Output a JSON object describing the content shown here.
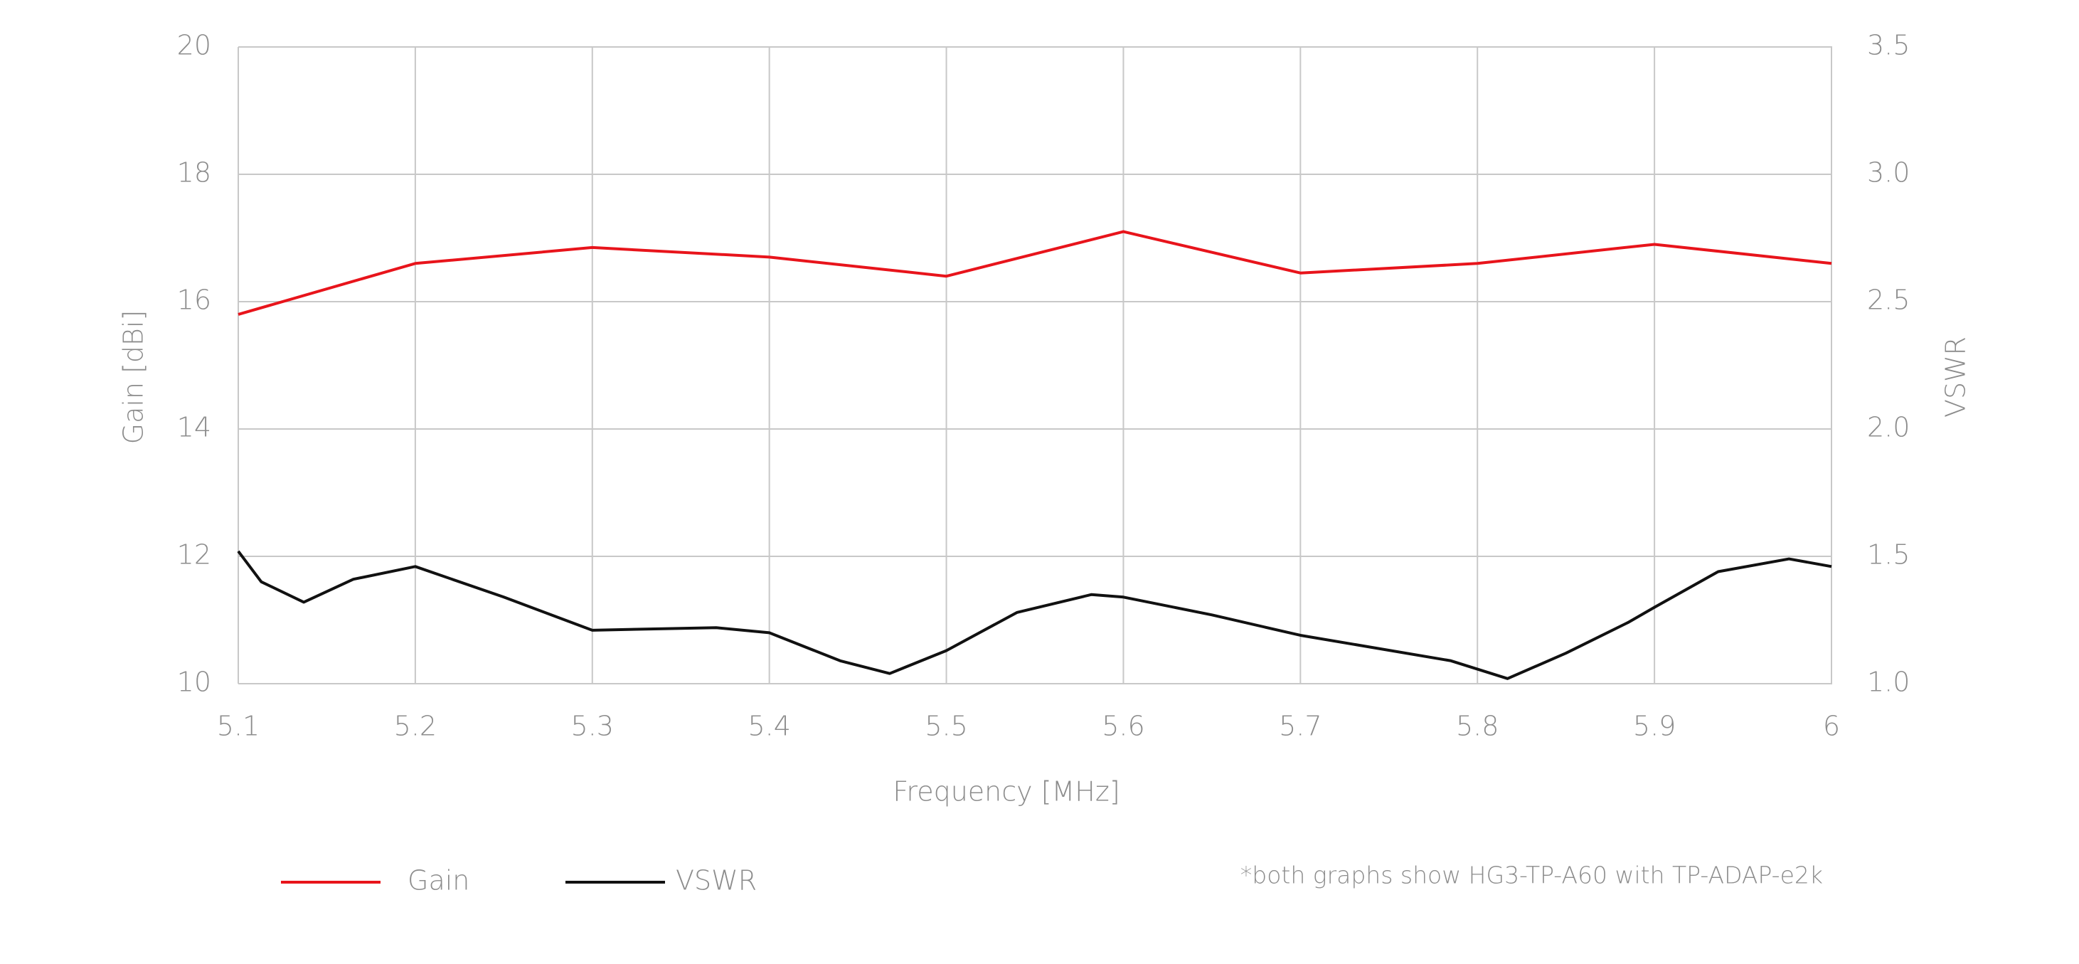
{
  "chart_data": {
    "type": "line",
    "x_label": "Frequency [MHz]",
    "y_label": "Gain [dBi]",
    "y2_label": "VSWR",
    "note": "*both graphs show HG3-TP-A60 with TP-ADAP-e2k",
    "xlim": [
      5.1,
      6
    ],
    "xticks": [
      5.1,
      5.2,
      5.3,
      5.4,
      5.5,
      5.6,
      5.7,
      5.8,
      5.9,
      6
    ],
    "ylim": [
      10,
      20
    ],
    "yticks": [
      10,
      12,
      14,
      16,
      18,
      20
    ],
    "y2lim": [
      1.0,
      3.5
    ],
    "y2ticks": [
      {
        "value": 1.0,
        "label": "1.0"
      },
      1.5,
      {
        "value": 2.0,
        "label": "2.0"
      },
      2.5,
      {
        "value": 3.0,
        "label": "3.0"
      },
      3.5
    ],
    "grid": true,
    "legend": "bottom-left",
    "series": [
      {
        "name": "Gain",
        "color": "#e8141b",
        "axis": "y",
        "x": [
          5.1,
          5.2,
          5.3,
          5.4,
          5.5,
          5.6,
          5.7,
          5.8,
          5.9,
          6
        ],
        "values": [
          15.8,
          16.6,
          16.85,
          16.7,
          16.4,
          17.1,
          16.45,
          16.6,
          16.9,
          16.6
        ]
      },
      {
        "name": "VSWR",
        "color": "#111111",
        "axis": "y2",
        "x": [
          5.1,
          5.113,
          5.137,
          5.165,
          5.2,
          5.25,
          5.3,
          5.37,
          5.4,
          5.44,
          5.468,
          5.5,
          5.54,
          5.582,
          5.6,
          5.65,
          5.7,
          5.785,
          5.817,
          5.85,
          5.885,
          5.9,
          5.936,
          5.976,
          6
        ],
        "values": [
          1.52,
          1.4,
          1.32,
          1.41,
          1.46,
          1.34,
          1.21,
          1.22,
          1.2,
          1.09,
          1.04,
          1.13,
          1.28,
          1.35,
          1.34,
          1.27,
          1.19,
          1.09,
          1.02,
          1.12,
          1.24,
          1.3,
          1.44,
          1.49,
          1.46
        ]
      }
    ]
  }
}
